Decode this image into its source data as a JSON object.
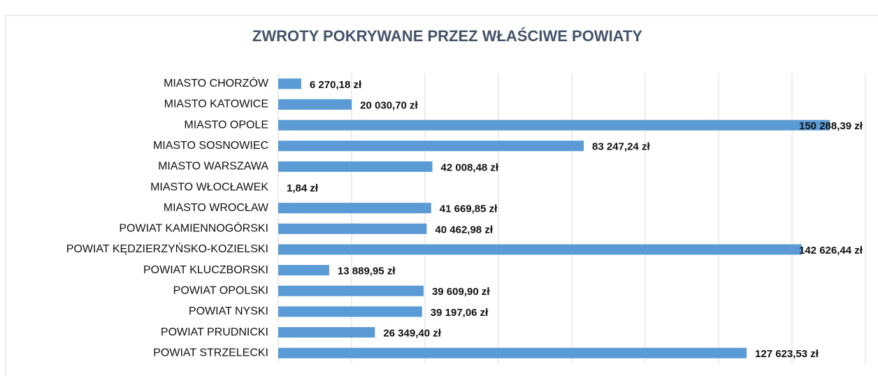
{
  "chart_data": {
    "type": "barh",
    "title": "ZWROTY POKRYWANE PRZEZ WŁAŚCIWE POWIATY",
    "categories": [
      "MIASTO CHORZÓW",
      "MIASTO KATOWICE",
      "MIASTO OPOLE",
      "MIASTO SOSNOWIEC",
      "MIASTO WARSZAWA",
      "MIASTO WŁOCŁAWEK",
      "MIASTO WROCŁAW",
      "POWIAT KAMIENNOGÓRSKI",
      "POWIAT KĘDZIERZYŃSKO-KOZIELSKI",
      "POWIAT KLUCZBORSKI",
      "POWIAT OPOLSKI",
      "POWIAT NYSKI",
      "POWIAT PRUDNICKI",
      "POWIAT STRZELECKI"
    ],
    "values": [
      6270.18,
      20030.7,
      150288.39,
      83247.24,
      42008.48,
      1.84,
      41669.85,
      40462.98,
      142626.44,
      13889.95,
      39609.9,
      39197.06,
      26349.4,
      127623.53
    ],
    "value_labels": [
      "6 270,18 zł",
      "20 030,70 zł",
      "150 288,39 zł",
      "83 247,24 zł",
      "42 008,48 zł",
      "1,84 zł",
      "41 669,85 zł",
      "40 462,98 zł",
      "142 626,44 zł",
      "13 889,95 zł",
      "39 609,90 zł",
      "39 197,06 zł",
      "26 349,40 zł",
      "127 623,53 zł"
    ],
    "color": "#5b9bd5",
    "xlim": [
      0,
      160000
    ],
    "xticks": [
      0,
      20000,
      40000,
      60000,
      80000,
      100000,
      120000,
      140000,
      160000
    ],
    "grid": true
  }
}
